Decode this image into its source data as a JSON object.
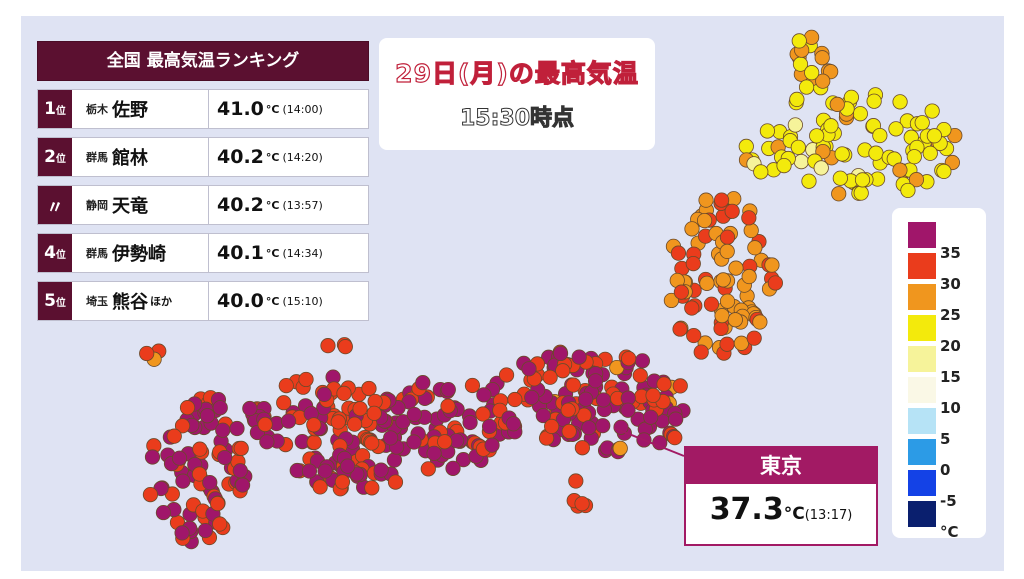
{
  "ranking": {
    "title": "全国 最高気温ランキング",
    "rows": [
      {
        "rank": "1",
        "suffix": "位",
        "pref": "栃木",
        "city": "佐野",
        "city_suffix": "",
        "temp": "41.0",
        "unit": "°C",
        "time": "(14:00)"
      },
      {
        "rank": "2",
        "suffix": "位",
        "pref": "群馬",
        "city": "館林",
        "city_suffix": "",
        "temp": "40.2",
        "unit": "°C",
        "time": "(14:20)"
      },
      {
        "rank": "〃",
        "suffix": "",
        "pref": "静岡",
        "city": "天竜",
        "city_suffix": "",
        "temp": "40.2",
        "unit": "°C",
        "time": "(13:57)"
      },
      {
        "rank": "4",
        "suffix": "位",
        "pref": "群馬",
        "city": "伊勢崎",
        "city_suffix": "",
        "temp": "40.1",
        "unit": "°C",
        "time": "(14:34)"
      },
      {
        "rank": "5",
        "suffix": "位",
        "pref": "埼玉",
        "city": "熊谷",
        "city_suffix": "ほか",
        "temp": "40.0",
        "unit": "°C",
        "time": "(15:10)"
      }
    ]
  },
  "header": {
    "title": "29日(月)の最高気温",
    "subtitle": "15:30時点"
  },
  "legend": {
    "items": [
      {
        "label": "35",
        "color": "#a0166a"
      },
      {
        "label": "30",
        "color": "#ea3c1c"
      },
      {
        "label": "25",
        "color": "#f0961e"
      },
      {
        "label": "20",
        "color": "#f3ea0c"
      },
      {
        "label": "15",
        "color": "#f6f39a"
      },
      {
        "label": "10",
        "color": "#faf8e6"
      },
      {
        "label": "5",
        "color": "#b6e3f6"
      },
      {
        "label": "0",
        "color": "#2c9be6"
      },
      {
        "label": "-5",
        "color": "#1442e6"
      },
      {
        "label": "°C",
        "color": "#0a1f6e"
      }
    ]
  },
  "callout": {
    "city": "東京",
    "temp": "37.3",
    "unit": "°C",
    "time": "(13:17)"
  },
  "colors": {
    "background": "#dfe3f3",
    "ranking_header": "#5b1030",
    "callout_accent": "#a21a64",
    "title_outline": "#c0203a"
  }
}
